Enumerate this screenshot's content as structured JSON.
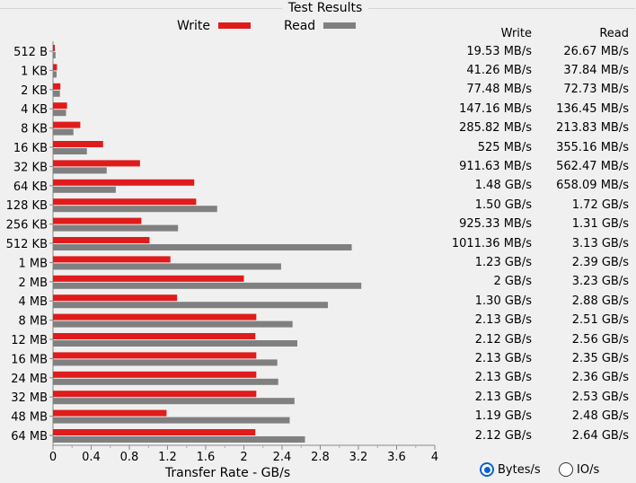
{
  "title": "Test Results",
  "legend": {
    "write_label": "Write",
    "read_label": "Read",
    "write_color": "#e01b1b",
    "read_color": "#808080"
  },
  "columns": {
    "write": "Write",
    "read": "Read"
  },
  "table": [
    {
      "write": "19.53 MB/s",
      "read": "26.67 MB/s"
    },
    {
      "write": "41.26 MB/s",
      "read": "37.84 MB/s"
    },
    {
      "write": "77.48 MB/s",
      "read": "72.73 MB/s"
    },
    {
      "write": "147.16 MB/s",
      "read": "136.45 MB/s"
    },
    {
      "write": "285.82 MB/s",
      "read": "213.83 MB/s"
    },
    {
      "write": "525 MB/s",
      "read": "355.16 MB/s"
    },
    {
      "write": "911.63 MB/s",
      "read": "562.47 MB/s"
    },
    {
      "write": "1.48 GB/s",
      "read": "658.09 MB/s"
    },
    {
      "write": "1.50 GB/s",
      "read": "1.72 GB/s"
    },
    {
      "write": "925.33 MB/s",
      "read": "1.31 GB/s"
    },
    {
      "write": "1011.36 MB/s",
      "read": "3.13 GB/s"
    },
    {
      "write": "1.23 GB/s",
      "read": "2.39 GB/s"
    },
    {
      "write": "2 GB/s",
      "read": "3.23 GB/s"
    },
    {
      "write": "1.30 GB/s",
      "read": "2.88 GB/s"
    },
    {
      "write": "2.13 GB/s",
      "read": "2.51 GB/s"
    },
    {
      "write": "2.12 GB/s",
      "read": "2.56 GB/s"
    },
    {
      "write": "2.13 GB/s",
      "read": "2.35 GB/s"
    },
    {
      "write": "2.13 GB/s",
      "read": "2.36 GB/s"
    },
    {
      "write": "2.13 GB/s",
      "read": "2.53 GB/s"
    },
    {
      "write": "1.19 GB/s",
      "read": "2.48 GB/s"
    },
    {
      "write": "2.12 GB/s",
      "read": "2.64 GB/s"
    }
  ],
  "chart_data": {
    "type": "bar",
    "orientation": "horizontal",
    "title": "Test Results",
    "xlabel": "Transfer Rate - GB/s",
    "ylabel": "",
    "xlim": [
      0,
      4
    ],
    "xticks": [
      "0",
      "0.4",
      "0.8",
      "1.2",
      "1.6",
      "2",
      "2.4",
      "2.8",
      "3.2",
      "3.6",
      "4"
    ],
    "categories": [
      "512 B",
      "1 KB",
      "2 KB",
      "4 KB",
      "8 KB",
      "16 KB",
      "32 KB",
      "64 KB",
      "128 KB",
      "256 KB",
      "512 KB",
      "1 MB",
      "2 MB",
      "4 MB",
      "8 MB",
      "12 MB",
      "16 MB",
      "24 MB",
      "32 MB",
      "48 MB",
      "64 MB"
    ],
    "series": [
      {
        "name": "Write",
        "color": "#e01b1b",
        "values": [
          0.0195,
          0.0413,
          0.0775,
          0.1472,
          0.2858,
          0.525,
          0.9116,
          1.48,
          1.5,
          0.9253,
          1.0114,
          1.23,
          2.0,
          1.3,
          2.13,
          2.12,
          2.13,
          2.13,
          2.13,
          1.19,
          2.12
        ]
      },
      {
        "name": "Read",
        "color": "#808080",
        "values": [
          0.0267,
          0.0378,
          0.0727,
          0.1365,
          0.2138,
          0.3552,
          0.5625,
          0.6581,
          1.72,
          1.31,
          3.13,
          2.39,
          3.23,
          2.88,
          2.51,
          2.56,
          2.35,
          2.36,
          2.53,
          2.48,
          2.64
        ]
      }
    ],
    "legend_position": "top"
  },
  "units": {
    "options": [
      "Bytes/s",
      "IO/s"
    ],
    "selected": "Bytes/s"
  }
}
